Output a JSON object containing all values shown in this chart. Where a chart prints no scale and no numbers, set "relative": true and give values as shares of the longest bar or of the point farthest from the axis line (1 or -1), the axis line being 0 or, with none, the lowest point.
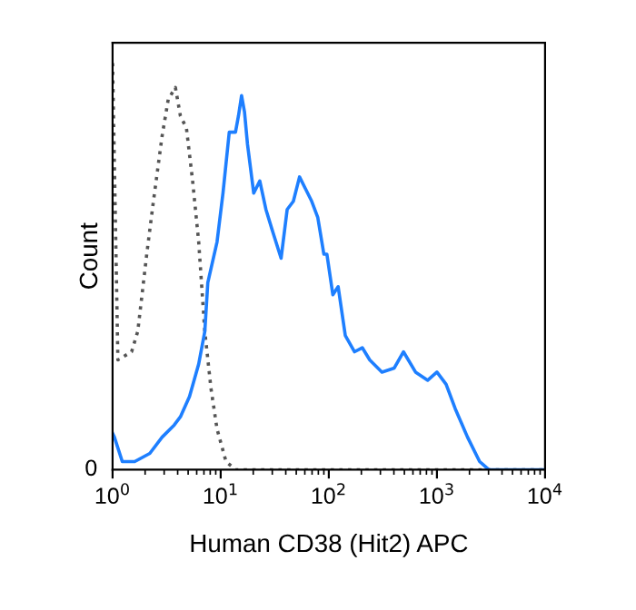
{
  "chart_data": {
    "type": "line",
    "xlabel": "Human CD38 (Hit2) APC",
    "ylabel": "Count",
    "relative": true,
    "log": "x",
    "xlim": [
      1,
      10000
    ],
    "xticks": [
      {
        "value": 1,
        "label": "10$^{0}$"
      },
      {
        "value": 10,
        "label": "10$^{1}$"
      },
      {
        "value": 100,
        "label": "10$^{2}$"
      },
      {
        "value": 1000,
        "label": "10$^{3}$"
      },
      {
        "value": 10000,
        "label": "10$^{4}$"
      }
    ],
    "annotations": [
      "0"
    ],
    "grid": false,
    "legend": false,
    "marker": "none",
    "series": [
      {
        "color": "#555555",
        "line_style": "dotted",
        "x": [
          1.0,
          1.04,
          1.12,
          1.5,
          1.71,
          2.07,
          2.36,
          2.87,
          3.27,
          3.81,
          4.24,
          4.82,
          5.5,
          6.26,
          7.13,
          8.13,
          9.25,
          11.2,
          13.7,
          100,
          1000,
          10000
        ],
        "values": [
          1.0,
          0.75,
          0.27,
          0.29,
          0.34,
          0.53,
          0.65,
          0.82,
          0.91,
          0.94,
          0.87,
          0.84,
          0.71,
          0.56,
          0.34,
          0.2,
          0.1,
          0.02,
          0.0,
          0.0,
          0.0,
          0.0
        ]
      },
      {
        "color": "#1e7fff",
        "line_style": "solid",
        "x": [
          1.0,
          1.04,
          1.23,
          1.6,
          2.21,
          2.87,
          3.72,
          4.24,
          5.15,
          6.26,
          7.13,
          7.6,
          9.25,
          10.5,
          12,
          13.7,
          14.6,
          15.6,
          16.6,
          17.7,
          20.2,
          23,
          26.2,
          29.9,
          36.2,
          41.2,
          47,
          53.6,
          61,
          69.5,
          79.1,
          90,
          96,
          109,
          122,
          142,
          173,
          204,
          239,
          310,
          403,
          490,
          634,
          822,
          1000,
          1216,
          1476,
          1919,
          2483,
          3020,
          10000
        ],
        "values": [
          0.09,
          0.08,
          0.02,
          0.02,
          0.04,
          0.08,
          0.11,
          0.13,
          0.18,
          0.26,
          0.34,
          0.46,
          0.56,
          0.68,
          0.83,
          0.83,
          0.87,
          0.92,
          0.88,
          0.8,
          0.68,
          0.71,
          0.64,
          0.59,
          0.52,
          0.64,
          0.66,
          0.72,
          0.69,
          0.66,
          0.62,
          0.53,
          0.53,
          0.43,
          0.45,
          0.33,
          0.29,
          0.3,
          0.27,
          0.24,
          0.25,
          0.29,
          0.24,
          0.22,
          0.24,
          0.21,
          0.15,
          0.08,
          0.02,
          0.0,
          0.0
        ]
      }
    ]
  }
}
